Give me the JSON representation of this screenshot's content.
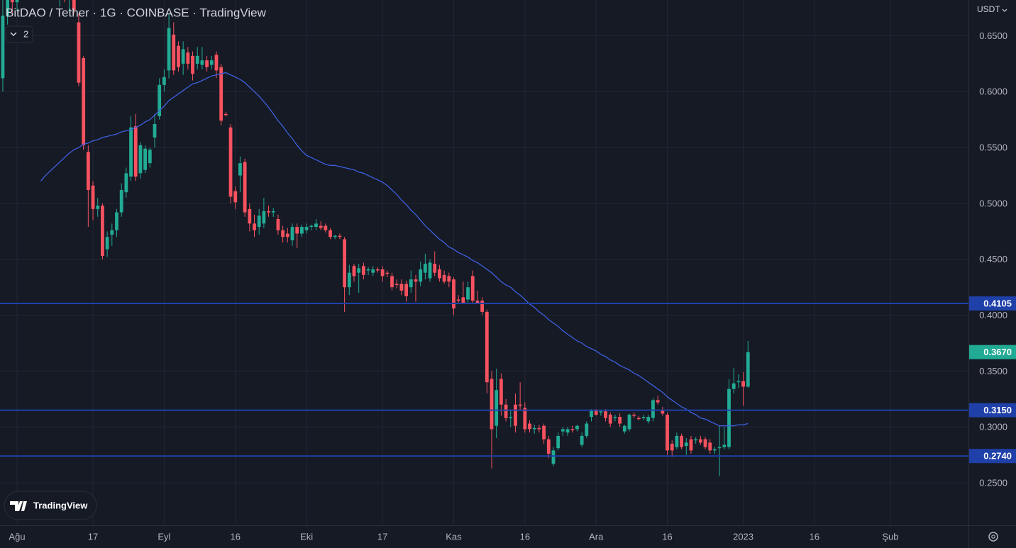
{
  "chart_data": {
    "type": "candlestick",
    "title": "BitDAO / Tether · 1G · COINBASE · TradingView",
    "indicator_count": "2",
    "currency": "USDT",
    "grid": true,
    "up_color": "#22ab94",
    "down_color": "#f7525f",
    "ylim": [
      0.212,
      0.682
    ],
    "yticks": [
      {
        "value": 0.25,
        "label": "0.2500"
      },
      {
        "value": 0.3,
        "label": "0.3000"
      },
      {
        "value": 0.35,
        "label": "0.3500"
      },
      {
        "value": 0.4,
        "label": "0.4000"
      },
      {
        "value": 0.45,
        "label": "0.4500"
      },
      {
        "value": 0.5,
        "label": "0.5000"
      },
      {
        "value": 0.55,
        "label": "0.5500"
      },
      {
        "value": 0.6,
        "label": "0.6000"
      },
      {
        "value": 0.65,
        "label": "0.6500"
      }
    ],
    "categories": [
      null,
      null,
      null,
      "Ağu",
      null,
      null,
      null,
      null,
      null,
      null,
      null,
      null,
      null,
      null,
      null,
      null,
      null,
      null,
      null,
      "17",
      null,
      null,
      null,
      null,
      null,
      null,
      null,
      null,
      null,
      null,
      null,
      null,
      null,
      null,
      "Eyl",
      null,
      null,
      null,
      null,
      null,
      null,
      null,
      null,
      null,
      null,
      null,
      null,
      null,
      null,
      "16",
      null,
      null,
      null,
      null,
      null,
      null,
      null,
      null,
      null,
      null,
      null,
      null,
      null,
      null,
      "Eki",
      null,
      null,
      null,
      null,
      null,
      null,
      null,
      null,
      null,
      null,
      null,
      null,
      null,
      null,
      null,
      "17",
      null,
      null,
      null,
      null,
      null,
      null,
      null,
      null,
      null,
      null,
      null,
      null,
      null,
      null,
      "Kas",
      null,
      null,
      null,
      null,
      null,
      null,
      null,
      null,
      null,
      null,
      null,
      null,
      null,
      null,
      "16",
      null,
      null,
      null,
      null,
      null,
      null,
      null,
      null,
      null,
      null,
      null,
      null,
      null,
      null,
      "Ara",
      null,
      null,
      null,
      null,
      null,
      null,
      null,
      null,
      null,
      null,
      null,
      null,
      null,
      null,
      "16",
      null,
      null,
      null,
      null,
      null,
      null,
      null,
      null,
      null,
      null,
      null,
      null,
      null,
      null,
      null,
      "2023",
      null,
      null,
      null,
      null,
      null,
      null,
      null,
      null,
      null,
      null,
      null,
      null,
      null,
      null,
      "16",
      null,
      null,
      null,
      null,
      null,
      null,
      null,
      null,
      null,
      null,
      null,
      null,
      null,
      null,
      null,
      "Şub",
      null,
      null,
      null,
      null,
      null,
      null,
      null,
      null,
      null,
      null,
      null,
      null,
      null,
      null,
      null
    ],
    "open": [
      0.612,
      0.668,
      0.69,
      0.68,
      0.7,
      0.705,
      0.715,
      0.71,
      0.725,
      0.73,
      0.72,
      0.705,
      0.69,
      0.695,
      0.685,
      0.69,
      0.662,
      0.63,
      0.546,
      0.516,
      0.495,
      0.498,
      0.459,
      0.472,
      0.476,
      0.492,
      0.51,
      0.524,
      0.569,
      0.527,
      0.53,
      0.536,
      0.559,
      0.578,
      0.606,
      0.619,
      0.651,
      0.641,
      0.625,
      0.635,
      0.632,
      0.625,
      0.624,
      0.628,
      0.624,
      0.633,
      0.622,
      0.58,
      0.568,
      0.511,
      0.525,
      0.537,
      0.495,
      0.482,
      0.479,
      0.482,
      0.493,
      0.492,
      0.486,
      0.476,
      0.473,
      0.467,
      0.479,
      0.473,
      0.476,
      0.479,
      0.479,
      0.48,
      0.48,
      0.476,
      0.47,
      0.471,
      0.468,
      0.425,
      0.444,
      0.438,
      0.444,
      0.44,
      0.438,
      0.441,
      0.441,
      0.438,
      0.435,
      0.428,
      0.428,
      0.428,
      0.425,
      0.432,
      0.43,
      0.438,
      0.433,
      0.446,
      0.441,
      0.436,
      0.435,
      0.432,
      0.414,
      0.416,
      0.414,
      0.435,
      0.413,
      0.413,
      0.403,
      0.343,
      0.301,
      0.343,
      0.32,
      0.308,
      0.32,
      0.32,
      0.317,
      0.303,
      0.298,
      0.299,
      0.301,
      0.289,
      0.267,
      0.281,
      0.296,
      0.295,
      0.298,
      0.298,
      0.284,
      0.292,
      0.309,
      0.315,
      0.313,
      0.314,
      0.311,
      0.308,
      0.309,
      0.296,
      0.298,
      0.311,
      0.308,
      0.308,
      0.305,
      0.308,
      0.324,
      0.315,
      0.311,
      0.285,
      0.282,
      0.292,
      0.283,
      0.289,
      0.288,
      0.289,
      0.289,
      0.286,
      0.279,
      0.281,
      0.282,
      0.282,
      0.334,
      0.34,
      0.341,
      0.336,
      null,
      null,
      null,
      null,
      null,
      null,
      null,
      null,
      null,
      null,
      null,
      null,
      null,
      null,
      null,
      null,
      null,
      null,
      null,
      null,
      null,
      null,
      null,
      null,
      null,
      null,
      null,
      null,
      null,
      null,
      null,
      null,
      null,
      null,
      null,
      null,
      null,
      null,
      null,
      null,
      null,
      null,
      null,
      null,
      null
    ],
    "high": [
      0.685,
      0.7,
      0.705,
      0.71,
      0.72,
      0.725,
      0.73,
      0.735,
      0.74,
      0.745,
      0.73,
      0.715,
      0.7,
      0.705,
      0.695,
      0.698,
      0.67,
      0.632,
      0.552,
      0.52,
      0.505,
      0.5,
      0.475,
      0.482,
      0.495,
      0.518,
      0.532,
      0.578,
      0.58,
      0.555,
      0.552,
      0.55,
      0.58,
      0.612,
      0.62,
      0.67,
      0.662,
      0.645,
      0.645,
      0.64,
      0.636,
      0.64,
      0.64,
      0.632,
      0.632,
      0.636,
      0.625,
      0.582,
      0.571,
      0.515,
      0.542,
      0.54,
      0.5,
      0.49,
      0.495,
      0.505,
      0.498,
      0.496,
      0.49,
      0.48,
      0.478,
      0.482,
      0.482,
      0.481,
      0.482,
      0.481,
      0.486,
      0.484,
      0.482,
      0.478,
      0.472,
      0.473,
      0.47,
      0.445,
      0.446,
      0.446,
      0.447,
      0.443,
      0.444,
      0.443,
      0.444,
      0.44,
      0.438,
      0.432,
      0.432,
      0.431,
      0.44,
      0.436,
      0.448,
      0.455,
      0.45,
      0.457,
      0.445,
      0.44,
      0.438,
      0.434,
      0.418,
      0.43,
      0.43,
      0.44,
      0.422,
      0.416,
      0.405,
      0.35,
      0.352,
      0.348,
      0.325,
      0.315,
      0.33,
      0.34,
      0.322,
      0.306,
      0.302,
      0.302,
      0.303,
      0.292,
      0.282,
      0.295,
      0.3,
      0.3,
      0.301,
      0.302,
      0.295,
      0.305,
      0.316,
      0.316,
      0.315,
      0.316,
      0.313,
      0.311,
      0.312,
      0.302,
      0.312,
      0.313,
      0.31,
      0.311,
      0.311,
      0.326,
      0.328,
      0.318,
      0.313,
      0.288,
      0.295,
      0.294,
      0.29,
      0.292,
      0.291,
      0.292,
      0.291,
      0.289,
      0.282,
      0.301,
      0.3,
      0.343,
      0.353,
      0.347,
      0.349,
      0.377,
      null,
      null,
      null,
      null,
      null,
      null,
      null,
      null,
      null,
      null,
      null,
      null,
      null,
      null,
      null,
      null,
      null,
      null,
      null,
      null,
      null,
      null,
      null,
      null,
      null,
      null,
      null,
      null,
      null,
      null,
      null,
      null,
      null,
      null,
      null,
      null,
      null,
      null,
      null,
      null,
      null,
      null,
      null,
      null,
      null
    ],
    "low": [
      0.6,
      0.66,
      0.67,
      0.672,
      0.69,
      0.695,
      0.7,
      0.7,
      0.71,
      0.715,
      0.7,
      0.685,
      0.676,
      0.68,
      0.672,
      0.67,
      0.605,
      0.548,
      0.479,
      0.485,
      0.488,
      0.45,
      0.452,
      0.462,
      0.47,
      0.488,
      0.505,
      0.52,
      0.52,
      0.522,
      0.527,
      0.532,
      0.55,
      0.575,
      0.6,
      0.612,
      0.615,
      0.618,
      0.615,
      0.62,
      0.61,
      0.62,
      0.62,
      0.618,
      0.62,
      0.612,
      0.57,
      0.578,
      0.5,
      0.495,
      0.51,
      0.488,
      0.475,
      0.47,
      0.472,
      0.478,
      0.488,
      0.488,
      0.472,
      0.465,
      0.465,
      0.462,
      0.46,
      0.47,
      0.473,
      0.476,
      0.476,
      0.476,
      0.474,
      0.468,
      0.468,
      0.468,
      0.403,
      0.418,
      0.43,
      0.42,
      0.432,
      0.436,
      0.435,
      0.438,
      0.43,
      0.434,
      0.422,
      0.424,
      0.418,
      0.412,
      0.42,
      0.412,
      0.426,
      0.432,
      0.43,
      0.435,
      0.43,
      0.428,
      0.425,
      0.4,
      0.41,
      0.41,
      0.41,
      0.41,
      0.41,
      0.4,
      0.33,
      0.263,
      0.29,
      0.31,
      0.305,
      0.3,
      0.295,
      0.315,
      0.295,
      0.295,
      0.294,
      0.295,
      0.285,
      0.272,
      0.265,
      0.279,
      0.292,
      0.292,
      0.295,
      0.296,
      0.282,
      0.29,
      0.305,
      0.31,
      0.31,
      0.305,
      0.3,
      0.305,
      0.3,
      0.294,
      0.296,
      0.308,
      0.306,
      0.306,
      0.303,
      0.305,
      0.32,
      0.31,
      0.275,
      0.273,
      0.28,
      0.28,
      0.275,
      0.276,
      0.285,
      0.284,
      0.28,
      0.276,
      0.276,
      0.256,
      0.28,
      0.28,
      0.33,
      0.335,
      0.319,
      0.335,
      null,
      null,
      null,
      null,
      null,
      null,
      null,
      null,
      null,
      null,
      null,
      null,
      null,
      null,
      null,
      null,
      null,
      null,
      null,
      null,
      null,
      null,
      null,
      null,
      null,
      null,
      null,
      null,
      null,
      null,
      null,
      null,
      null,
      null,
      null,
      null,
      null,
      null,
      null,
      null,
      null,
      null,
      null,
      null,
      null
    ],
    "close": [
      0.668,
      0.69,
      0.68,
      0.7,
      0.705,
      0.715,
      0.71,
      0.725,
      0.73,
      0.72,
      0.705,
      0.69,
      0.695,
      0.685,
      0.69,
      0.673,
      0.608,
      0.552,
      0.512,
      0.495,
      0.498,
      0.453,
      0.47,
      0.476,
      0.492,
      0.512,
      0.527,
      0.568,
      0.524,
      0.552,
      0.549,
      0.548,
      0.571,
      0.606,
      0.613,
      0.657,
      0.619,
      0.622,
      0.638,
      0.625,
      0.616,
      0.632,
      0.628,
      0.622,
      0.628,
      0.619,
      0.574,
      0.579,
      0.506,
      0.501,
      0.536,
      0.492,
      0.482,
      0.476,
      0.489,
      0.493,
      0.492,
      0.493,
      0.476,
      0.47,
      0.47,
      0.479,
      0.473,
      0.479,
      0.479,
      0.48,
      0.482,
      0.478,
      0.476,
      0.47,
      0.471,
      0.47,
      0.425,
      0.438,
      0.435,
      0.442,
      0.436,
      0.441,
      0.441,
      0.44,
      0.435,
      0.437,
      0.425,
      0.427,
      0.422,
      0.417,
      0.432,
      0.43,
      0.441,
      0.446,
      0.447,
      0.438,
      0.433,
      0.43,
      0.43,
      0.406,
      0.413,
      0.411,
      0.425,
      0.413,
      0.411,
      0.403,
      0.34,
      0.298,
      0.333,
      0.32,
      0.308,
      0.309,
      0.301,
      0.319,
      0.298,
      0.298,
      0.299,
      0.298,
      0.289,
      0.276,
      0.279,
      0.292,
      0.298,
      0.298,
      0.297,
      0.301,
      0.292,
      0.303,
      0.315,
      0.311,
      0.314,
      0.308,
      0.303,
      0.309,
      0.303,
      0.301,
      0.311,
      0.31,
      0.307,
      0.309,
      0.309,
      0.324,
      0.322,
      0.312,
      0.279,
      0.279,
      0.292,
      0.282,
      0.286,
      0.279,
      0.289,
      0.286,
      0.282,
      0.279,
      0.28,
      0.282,
      0.284,
      0.334,
      0.339,
      0.341,
      0.336,
      0.367,
      null,
      null,
      null,
      null,
      null,
      null,
      null,
      null,
      null,
      null,
      null,
      null,
      null,
      null,
      null,
      null,
      null,
      null,
      null,
      null,
      null,
      null,
      null,
      null,
      null,
      null,
      null,
      null,
      null,
      null,
      null,
      null,
      null,
      null,
      null,
      null,
      null,
      null,
      null,
      null,
      null,
      null,
      null,
      null,
      null
    ],
    "ma": {
      "color": "#3d5fe0",
      "values": [
        null,
        null,
        null,
        null,
        null,
        null,
        null,
        null,
        0.52,
        0.525,
        0.529,
        0.533,
        0.537,
        0.541,
        0.545,
        0.548,
        0.55,
        0.553,
        0.554,
        0.556,
        0.557,
        0.559,
        0.56,
        0.561,
        0.562,
        0.564,
        0.565,
        0.566,
        0.568,
        0.57,
        0.573,
        0.575,
        0.579,
        0.583,
        0.587,
        0.592,
        0.595,
        0.598,
        0.601,
        0.604,
        0.607,
        0.608,
        0.61,
        0.612,
        0.614,
        0.615,
        0.616,
        0.617,
        0.615,
        0.613,
        0.611,
        0.608,
        0.604,
        0.6,
        0.596,
        0.591,
        0.586,
        0.58,
        0.574,
        0.569,
        0.563,
        0.558,
        0.552,
        0.547,
        0.543,
        0.541,
        0.539,
        0.537,
        0.535,
        0.534,
        0.534,
        0.533,
        0.532,
        0.531,
        0.53,
        0.528,
        0.527,
        0.525,
        0.523,
        0.521,
        0.519,
        0.516,
        0.512,
        0.508,
        0.503,
        0.499,
        0.494,
        0.49,
        0.485,
        0.48,
        0.476,
        0.472,
        0.468,
        0.465,
        0.461,
        0.459,
        0.456,
        0.454,
        0.452,
        0.449,
        0.447,
        0.444,
        0.441,
        0.438,
        0.434,
        0.43,
        0.427,
        0.425,
        0.421,
        0.418,
        0.414,
        0.41,
        0.407,
        0.403,
        0.4,
        0.396,
        0.393,
        0.39,
        0.386,
        0.383,
        0.38,
        0.377,
        0.375,
        0.372,
        0.37,
        0.368,
        0.365,
        0.363,
        0.36,
        0.358,
        0.355,
        0.353,
        0.351,
        0.348,
        0.346,
        0.343,
        0.34,
        0.337,
        0.334,
        0.331,
        0.327,
        0.324,
        0.321,
        0.318,
        0.316,
        0.313,
        0.311,
        0.308,
        0.307,
        0.305,
        0.303,
        0.301,
        0.301,
        0.301,
        0.301,
        0.302,
        0.302,
        0.303,
        null,
        null,
        null,
        null,
        null,
        null,
        null,
        null,
        null,
        null,
        null,
        null,
        null,
        null,
        null,
        null,
        null,
        null,
        null,
        null,
        null,
        null,
        null,
        null,
        null,
        null,
        null,
        null,
        null,
        null,
        null,
        null,
        null,
        null,
        null,
        null,
        null,
        null,
        null,
        null,
        null,
        null,
        null,
        null,
        null
      ]
    },
    "hline_color": "#1f40a8",
    "hlines": [
      {
        "value": 0.4105,
        "label": "0.4105"
      },
      {
        "value": 0.315,
        "label": "0.3150"
      },
      {
        "value": 0.274,
        "label": "0.2740"
      }
    ],
    "last_price": {
      "value": 0.367,
      "label": "0.3670"
    }
  },
  "watermark": {
    "text": "TradingView"
  }
}
